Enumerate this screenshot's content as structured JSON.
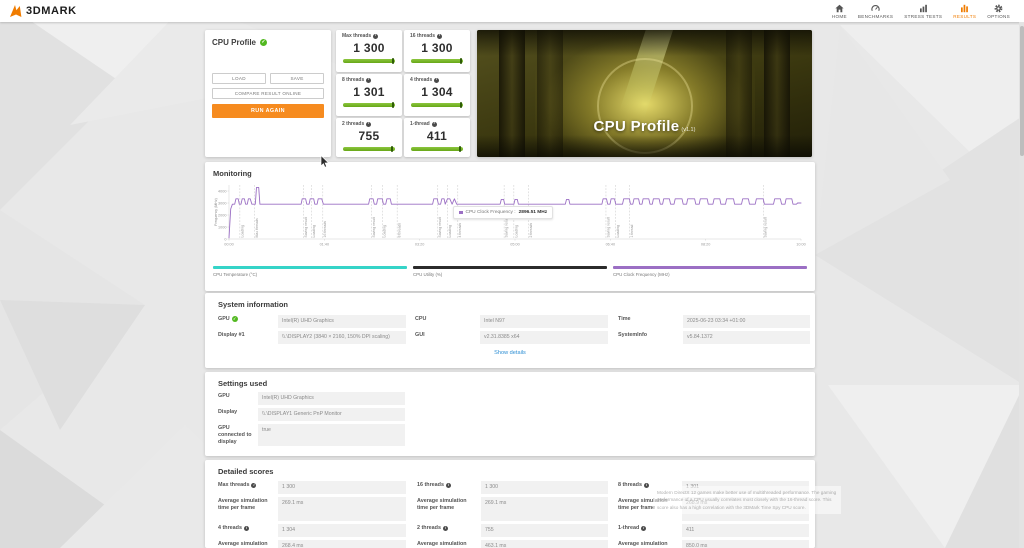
{
  "topbar": {
    "logo": "3DMARK",
    "nav": [
      {
        "label": "HOME",
        "icon": "home-icon",
        "active": false
      },
      {
        "label": "BENCHMARKS",
        "icon": "benchmark-gauge-icon",
        "active": false
      },
      {
        "label": "STRESS TESTS",
        "icon": "stress-tests-chart-icon",
        "active": false
      },
      {
        "label": "RESULTS",
        "icon": "results-bars-icon",
        "active": true
      },
      {
        "label": "OPTIONS",
        "icon": "gear-icon",
        "active": false
      }
    ],
    "active_color": "#f07c00"
  },
  "profile_panel": {
    "title": "CPU Profile",
    "load_label": "LOAD",
    "save_label": "SAVE",
    "compare_label": "COMPARE RESULT ONLINE",
    "run_again_label": "RUN AGAIN",
    "run_again_color": "#f68b1f"
  },
  "scores": [
    {
      "label": "Max threads",
      "value": "1 300",
      "bar_marker_pct": 94
    },
    {
      "label": "16 threads",
      "value": "1 300",
      "bar_marker_pct": 94
    },
    {
      "label": "8 threads",
      "value": "1 301",
      "bar_marker_pct": 94
    },
    {
      "label": "4 threads",
      "value": "1 304",
      "bar_marker_pct": 94
    },
    {
      "label": "2 threads",
      "value": "755",
      "bar_marker_pct": 93
    },
    {
      "label": "1-thread",
      "value": "411",
      "bar_marker_pct": 93
    }
  ],
  "score_bar_color": "#7ab51d",
  "banner": {
    "title": "CPU Profile",
    "version": "(v1.1)"
  },
  "monitoring": {
    "title": "Monitoring",
    "tooltip": {
      "series_label": "CPU Clock Frequency :",
      "value": "2896.51 MHz",
      "color": "#9b6fc4"
    },
    "legend": [
      {
        "label": "CPU Temperature (°C)",
        "color": "#35d4c8"
      },
      {
        "label": "CPU Utility (%)",
        "color": "#2b2b2b"
      },
      {
        "label": "CPU Clock Frequency (MHz)",
        "color": "#9b6fc4"
      }
    ],
    "chart_data": {
      "type": "line",
      "title": "Monitoring",
      "xlabel": "",
      "ylabel": "Frequency (MHz)",
      "ylim": [
        0,
        4500
      ],
      "yticks": [
        0,
        1000,
        2000,
        3000,
        4000
      ],
      "xticks": [
        "00:00",
        "01:40",
        "03:20",
        "05:00",
        "06:40",
        "08:20",
        "10:00"
      ],
      "grid": false,
      "legend_position": "bottom",
      "series": [
        {
          "name": "CPU Clock Frequency (MHz)",
          "color": "#9b6fc4",
          "points": [
            [
              0,
              100
            ],
            [
              0.003,
              2500
            ],
            [
              0.006,
              2900
            ],
            [
              0.01,
              2900
            ],
            [
              0.012,
              3350
            ],
            [
              0.016,
              3350
            ],
            [
              0.018,
              2900
            ],
            [
              0.021,
              2900
            ],
            [
              0.023,
              3350
            ],
            [
              0.027,
              3350
            ],
            [
              0.029,
              2900
            ],
            [
              0.032,
              2900
            ],
            [
              0.034,
              3350
            ],
            [
              0.037,
              3350
            ],
            [
              0.04,
              2900
            ],
            [
              0.046,
              2900
            ],
            [
              0.048,
              4300
            ],
            [
              0.052,
              4300
            ],
            [
              0.054,
              2900
            ],
            [
              0.126,
              2900
            ],
            [
              0.128,
              3350
            ],
            [
              0.134,
              3350
            ],
            [
              0.136,
              2900
            ],
            [
              0.14,
              2900
            ],
            [
              0.142,
              3350
            ],
            [
              0.148,
              3350
            ],
            [
              0.15,
              2900
            ],
            [
              0.154,
              2900
            ],
            [
              0.156,
              3350
            ],
            [
              0.162,
              3350
            ],
            [
              0.165,
              2900
            ],
            [
              0.244,
              2900
            ],
            [
              0.246,
              3350
            ],
            [
              0.252,
              3350
            ],
            [
              0.254,
              2900
            ],
            [
              0.258,
              2900
            ],
            [
              0.26,
              3350
            ],
            [
              0.268,
              3350
            ],
            [
              0.27,
              2900
            ],
            [
              0.274,
              2900
            ],
            [
              0.276,
              3350
            ],
            [
              0.282,
              3350
            ],
            [
              0.284,
              2900
            ],
            [
              0.356,
              2900
            ],
            [
              0.358,
              3350
            ],
            [
              0.364,
              3350
            ],
            [
              0.366,
              2900
            ],
            [
              0.37,
              2900
            ],
            [
              0.372,
              3350
            ],
            [
              0.376,
              3350
            ],
            [
              0.378,
              2900
            ],
            [
              0.382,
              3350
            ],
            [
              0.386,
              3350
            ],
            [
              0.39,
              2900
            ],
            [
              0.394,
              3350
            ],
            [
              0.398,
              2900
            ],
            [
              0.474,
              2900
            ],
            [
              0.476,
              3300
            ],
            [
              0.48,
              3300
            ],
            [
              0.482,
              2900
            ],
            [
              0.498,
              2900
            ],
            [
              0.5,
              3300
            ],
            [
              0.504,
              3300
            ],
            [
              0.506,
              2900
            ],
            [
              0.588,
              2900
            ],
            [
              0.59,
              3300
            ],
            [
              0.594,
              3300
            ],
            [
              0.596,
              2900
            ],
            [
              0.652,
              2900
            ],
            [
              0.654,
              3350
            ],
            [
              0.66,
              3350
            ],
            [
              0.662,
              2900
            ],
            [
              0.666,
              2900
            ],
            [
              0.668,
              3350
            ],
            [
              0.674,
              3350
            ],
            [
              0.676,
              2900
            ],
            [
              0.688,
              2900
            ],
            [
              0.69,
              3350
            ],
            [
              0.7,
              3350
            ],
            [
              0.702,
              2900
            ],
            [
              0.706,
              2900
            ],
            [
              0.708,
              3350
            ],
            [
              0.716,
              3350
            ],
            [
              0.718,
              2900
            ],
            [
              0.722,
              2900
            ],
            [
              0.724,
              3350
            ],
            [
              0.734,
              3350
            ],
            [
              0.736,
              2900
            ],
            [
              0.74,
              2900
            ],
            [
              0.742,
              3350
            ],
            [
              0.752,
              3350
            ],
            [
              0.754,
              2900
            ],
            [
              0.758,
              2900
            ],
            [
              0.76,
              3350
            ],
            [
              0.77,
              3350
            ],
            [
              0.772,
              2900
            ],
            [
              0.778,
              2900
            ],
            [
              0.78,
              3350
            ],
            [
              0.792,
              3350
            ],
            [
              0.794,
              2900
            ],
            [
              0.8,
              2900
            ],
            [
              0.802,
              3350
            ],
            [
              0.814,
              3350
            ],
            [
              0.816,
              2900
            ],
            [
              0.822,
              2900
            ],
            [
              0.824,
              3350
            ],
            [
              0.836,
              3350
            ],
            [
              0.838,
              2900
            ],
            [
              0.846,
              2900
            ],
            [
              0.848,
              3350
            ],
            [
              0.858,
              3350
            ],
            [
              0.86,
              2900
            ],
            [
              0.868,
              2900
            ],
            [
              0.87,
              3350
            ],
            [
              0.882,
              3350
            ],
            [
              0.884,
              2900
            ],
            [
              0.896,
              2900
            ],
            [
              0.898,
              3350
            ],
            [
              0.908,
              3350
            ],
            [
              0.91,
              2900
            ],
            [
              0.92,
              2900
            ],
            [
              0.922,
              3350
            ],
            [
              0.934,
              3350
            ],
            [
              0.936,
              2900
            ],
            [
              0.952,
              2900
            ],
            [
              0.954,
              3350
            ],
            [
              0.964,
              3350
            ],
            [
              0.966,
              2900
            ],
            [
              0.972,
              2900
            ],
            [
              0.974,
              3350
            ],
            [
              0.984,
              3350
            ],
            [
              0.986,
              2900
            ],
            [
              0.992,
              2900
            ],
            [
              0.994,
              3000
            ],
            [
              1,
              3000
            ]
          ]
        }
      ],
      "event_markers": [
        {
          "f": 0.019,
          "label": "Loading"
        },
        {
          "f": 0.045,
          "label": "Max threads"
        },
        {
          "f": 0.13,
          "label": "Saving result"
        },
        {
          "f": 0.144,
          "label": "Loading"
        },
        {
          "f": 0.164,
          "label": "16 threads"
        },
        {
          "f": 0.249,
          "label": "Saving result"
        },
        {
          "f": 0.268,
          "label": "Loading"
        },
        {
          "f": 0.294,
          "label": "8 threads"
        },
        {
          "f": 0.365,
          "label": "Saving result"
        },
        {
          "f": 0.382,
          "label": "Loading"
        },
        {
          "f": 0.4,
          "label": "4 threads"
        },
        {
          "f": 0.481,
          "label": "Saving result"
        },
        {
          "f": 0.498,
          "label": "Loading"
        },
        {
          "f": 0.524,
          "label": "2 threads"
        },
        {
          "f": 0.659,
          "label": "Saving result"
        },
        {
          "f": 0.676,
          "label": "Loading"
        },
        {
          "f": 0.7,
          "label": "1 thread"
        },
        {
          "f": 0.934,
          "label": "Saving result"
        }
      ]
    }
  },
  "system_information": {
    "title": "System information",
    "show_details": "Show details",
    "fields": [
      {
        "label": "GPU",
        "value": "Intel(R) UHD Graphics",
        "check": true
      },
      {
        "label": "Display #1",
        "value": "\\\\.\\DISPLAY2 (3840 × 2160, 150% DPI scaling)"
      },
      {
        "label": "CPU",
        "value": "Intel N97"
      },
      {
        "label": "GUI",
        "value": "v2.31.8385 x64"
      },
      {
        "label": "Time",
        "value": "2025-06-23 03:34 +01:00"
      },
      {
        "label": "SystemInfo",
        "value": "v5.84.1372"
      }
    ]
  },
  "settings_used": {
    "title": "Settings used",
    "rows": [
      {
        "label": "GPU",
        "value": "Intel(R) UHD Graphics"
      },
      {
        "label": "Display",
        "value": "\\\\.\\DISPLAY1 Generic PnP Monitor"
      },
      {
        "label": "GPU connected to display",
        "value": "true"
      }
    ]
  },
  "detailed_scores": {
    "title": "Detailed scores",
    "avg_label": "Average simulation time per frame",
    "entries": [
      {
        "label": "Max threads",
        "value": "1 300",
        "avg": "269.1 ms"
      },
      {
        "label": "16 threads",
        "value": "1 300",
        "avg": "269.1 ms"
      },
      {
        "label": "8 threads",
        "value": "1 301",
        "avg": "268.9 ms"
      },
      {
        "label": "4 threads",
        "value": "1 304",
        "avg": "268.4 ms"
      },
      {
        "label": "2 threads",
        "value": "755",
        "avg": "463.1 ms"
      },
      {
        "label": "1-thread",
        "value": "411",
        "avg": "850.0 ms"
      }
    ],
    "hover_tooltip_text": "Modern DirectX 12 games make better use of multithreaded performance. The gaming performance of a CPU usually correlates most closely with the 16-thread score. This score also has a high correlation with the 3DMark Time Spy CPU score."
  }
}
